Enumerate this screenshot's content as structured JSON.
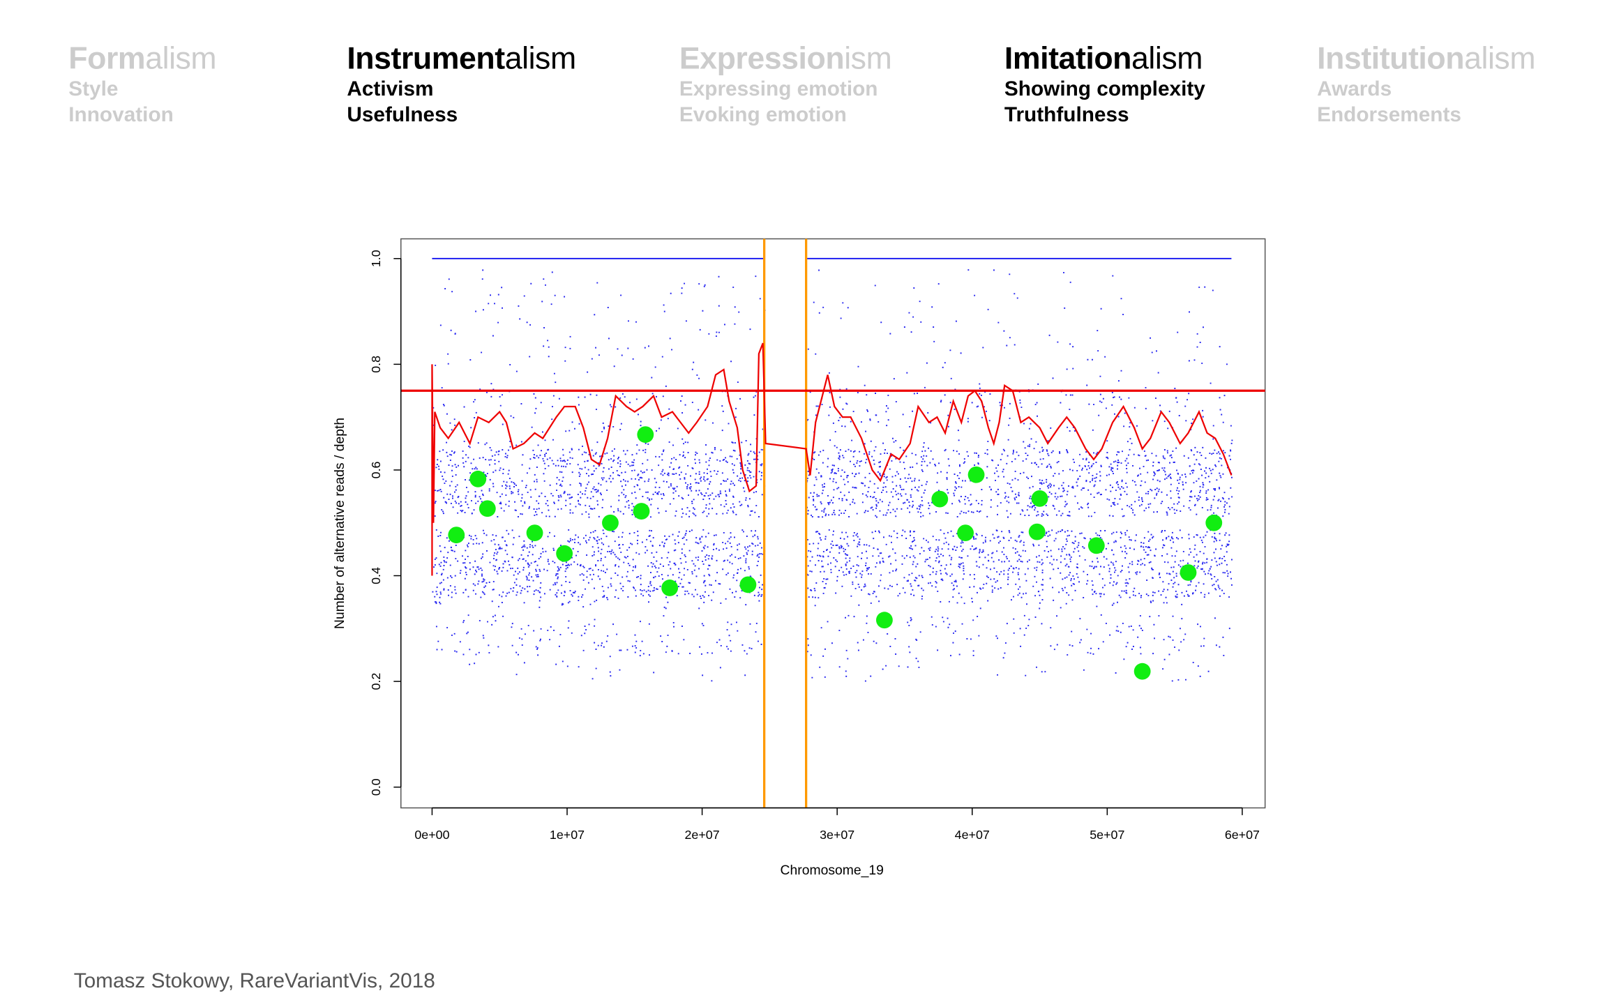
{
  "header": {
    "columns": [
      {
        "stem": "Form",
        "suffix": "alism",
        "lines": [
          "Style",
          "Innovation"
        ],
        "active": false
      },
      {
        "stem": "Instrument",
        "suffix": "alism",
        "lines": [
          "Activism",
          "Usefulness"
        ],
        "active": true
      },
      {
        "stem": "Expression",
        "suffix": "ism",
        "lines": [
          "Expressing emotion",
          "Evoking emotion"
        ],
        "active": false
      },
      {
        "stem": "Imitation",
        "suffix": "alism",
        "lines": [
          "Showing complexity",
          "Truthfulness"
        ],
        "active": true
      },
      {
        "stem": "Institution",
        "suffix": "alism",
        "lines": [
          "Awards",
          "Endorsements"
        ],
        "active": false
      }
    ]
  },
  "credit": "Tomasz Stokowy, RareVariantVis, 2018",
  "chart_data": {
    "type": "scatter",
    "xlabel": "Chromosome_19",
    "ylabel": "Number of alternative reads / depth",
    "xlim": [
      0,
      60000000
    ],
    "ylim": [
      0,
      1
    ],
    "x_ticks": [
      {
        "value": 0,
        "label": "0e+00"
      },
      {
        "value": 10000000,
        "label": "1e+07"
      },
      {
        "value": 20000000,
        "label": "2e+07"
      },
      {
        "value": 30000000,
        "label": "3e+07"
      },
      {
        "value": 40000000,
        "label": "4e+07"
      },
      {
        "value": 50000000,
        "label": "5e+07"
      },
      {
        "value": 60000000,
        "label": "6e+07"
      }
    ],
    "y_ticks": [
      {
        "value": 0,
        "label": "0.0"
      },
      {
        "value": 0.2,
        "label": "0.2"
      },
      {
        "value": 0.4,
        "label": "0.4"
      },
      {
        "value": 0.6,
        "label": "0.6"
      },
      {
        "value": 0.8,
        "label": "0.8"
      },
      {
        "value": 1,
        "label": "1.0"
      }
    ],
    "grid": false,
    "colors": {
      "variants": "#0000ee",
      "ratio": "#ee0000",
      "rare": "#11ee11",
      "centromere": "#ff9900",
      "threshold": "#ee0000"
    },
    "threshold_y": 0.75,
    "centromere": [
      24600000,
      27700000
    ],
    "rare_variants": [
      {
        "x": 1800000,
        "y": 0.477
      },
      {
        "x": 3400000,
        "y": 0.583
      },
      {
        "x": 4100000,
        "y": 0.527
      },
      {
        "x": 7600000,
        "y": 0.481
      },
      {
        "x": 9800000,
        "y": 0.442
      },
      {
        "x": 13200000,
        "y": 0.5
      },
      {
        "x": 15500000,
        "y": 0.522
      },
      {
        "x": 15800000,
        "y": 0.667
      },
      {
        "x": 17600000,
        "y": 0.377
      },
      {
        "x": 23400000,
        "y": 0.383
      },
      {
        "x": 33500000,
        "y": 0.316
      },
      {
        "x": 37600000,
        "y": 0.545
      },
      {
        "x": 39500000,
        "y": 0.481
      },
      {
        "x": 40300000,
        "y": 0.591
      },
      {
        "x": 44800000,
        "y": 0.483
      },
      {
        "x": 45000000,
        "y": 0.546
      },
      {
        "x": 49200000,
        "y": 0.457
      },
      {
        "x": 52600000,
        "y": 0.219
      },
      {
        "x": 56000000,
        "y": 0.406
      },
      {
        "x": 57900000,
        "y": 0.5
      }
    ],
    "ratio_line": [
      [
        0,
        0.4
      ],
      [
        0,
        0.8
      ],
      [
        100000,
        0.5
      ],
      [
        200000,
        0.71
      ],
      [
        600000,
        0.68
      ],
      [
        1200000,
        0.66
      ],
      [
        2000000,
        0.69
      ],
      [
        2800000,
        0.65
      ],
      [
        3400000,
        0.7
      ],
      [
        4200000,
        0.69
      ],
      [
        5000000,
        0.71
      ],
      [
        5500000,
        0.69
      ],
      [
        6000000,
        0.64
      ],
      [
        6800000,
        0.65
      ],
      [
        7600000,
        0.67
      ],
      [
        8200000,
        0.66
      ],
      [
        9200000,
        0.7
      ],
      [
        9800000,
        0.72
      ],
      [
        10600000,
        0.72
      ],
      [
        11200000,
        0.68
      ],
      [
        11800000,
        0.62
      ],
      [
        12400000,
        0.61
      ],
      [
        13000000,
        0.66
      ],
      [
        13600000,
        0.74
      ],
      [
        14400000,
        0.72
      ],
      [
        15000000,
        0.71
      ],
      [
        15600000,
        0.72
      ],
      [
        16400000,
        0.74
      ],
      [
        17000000,
        0.7
      ],
      [
        17800000,
        0.71
      ],
      [
        18400000,
        0.69
      ],
      [
        19000000,
        0.67
      ],
      [
        19600000,
        0.69
      ],
      [
        20400000,
        0.72
      ],
      [
        21000000,
        0.78
      ],
      [
        21600000,
        0.79
      ],
      [
        22000000,
        0.73
      ],
      [
        22600000,
        0.68
      ],
      [
        23000000,
        0.6
      ],
      [
        23500000,
        0.56
      ],
      [
        24000000,
        0.57
      ],
      [
        24200000,
        0.82
      ],
      [
        24500000,
        0.84
      ],
      [
        24700000,
        0.65
      ],
      [
        27700000,
        0.64
      ],
      [
        28000000,
        0.59
      ],
      [
        28400000,
        0.69
      ],
      [
        28800000,
        0.73
      ],
      [
        29300000,
        0.78
      ],
      [
        29800000,
        0.72
      ],
      [
        30400000,
        0.7
      ],
      [
        31000000,
        0.7
      ],
      [
        31800000,
        0.66
      ],
      [
        32600000,
        0.6
      ],
      [
        33200000,
        0.58
      ],
      [
        34000000,
        0.63
      ],
      [
        34600000,
        0.62
      ],
      [
        35400000,
        0.65
      ],
      [
        36000000,
        0.72
      ],
      [
        36800000,
        0.69
      ],
      [
        37400000,
        0.7
      ],
      [
        38000000,
        0.67
      ],
      [
        38600000,
        0.73
      ],
      [
        39200000,
        0.69
      ],
      [
        39700000,
        0.74
      ],
      [
        40200000,
        0.75
      ],
      [
        40700000,
        0.73
      ],
      [
        41200000,
        0.68
      ],
      [
        41600000,
        0.65
      ],
      [
        42000000,
        0.69
      ],
      [
        42400000,
        0.76
      ],
      [
        43000000,
        0.75
      ],
      [
        43600000,
        0.69
      ],
      [
        44200000,
        0.7
      ],
      [
        45000000,
        0.68
      ],
      [
        45600000,
        0.65
      ],
      [
        46400000,
        0.68
      ],
      [
        47000000,
        0.7
      ],
      [
        47600000,
        0.68
      ],
      [
        48400000,
        0.64
      ],
      [
        49000000,
        0.62
      ],
      [
        49600000,
        0.64
      ],
      [
        50400000,
        0.69
      ],
      [
        51200000,
        0.72
      ],
      [
        52000000,
        0.68
      ],
      [
        52600000,
        0.64
      ],
      [
        53200000,
        0.66
      ],
      [
        54000000,
        0.71
      ],
      [
        54600000,
        0.69
      ],
      [
        55400000,
        0.65
      ],
      [
        56000000,
        0.67
      ],
      [
        56800000,
        0.71
      ],
      [
        57400000,
        0.67
      ],
      [
        58000000,
        0.66
      ],
      [
        58600000,
        0.63
      ],
      [
        59200000,
        0.59
      ]
    ]
  }
}
